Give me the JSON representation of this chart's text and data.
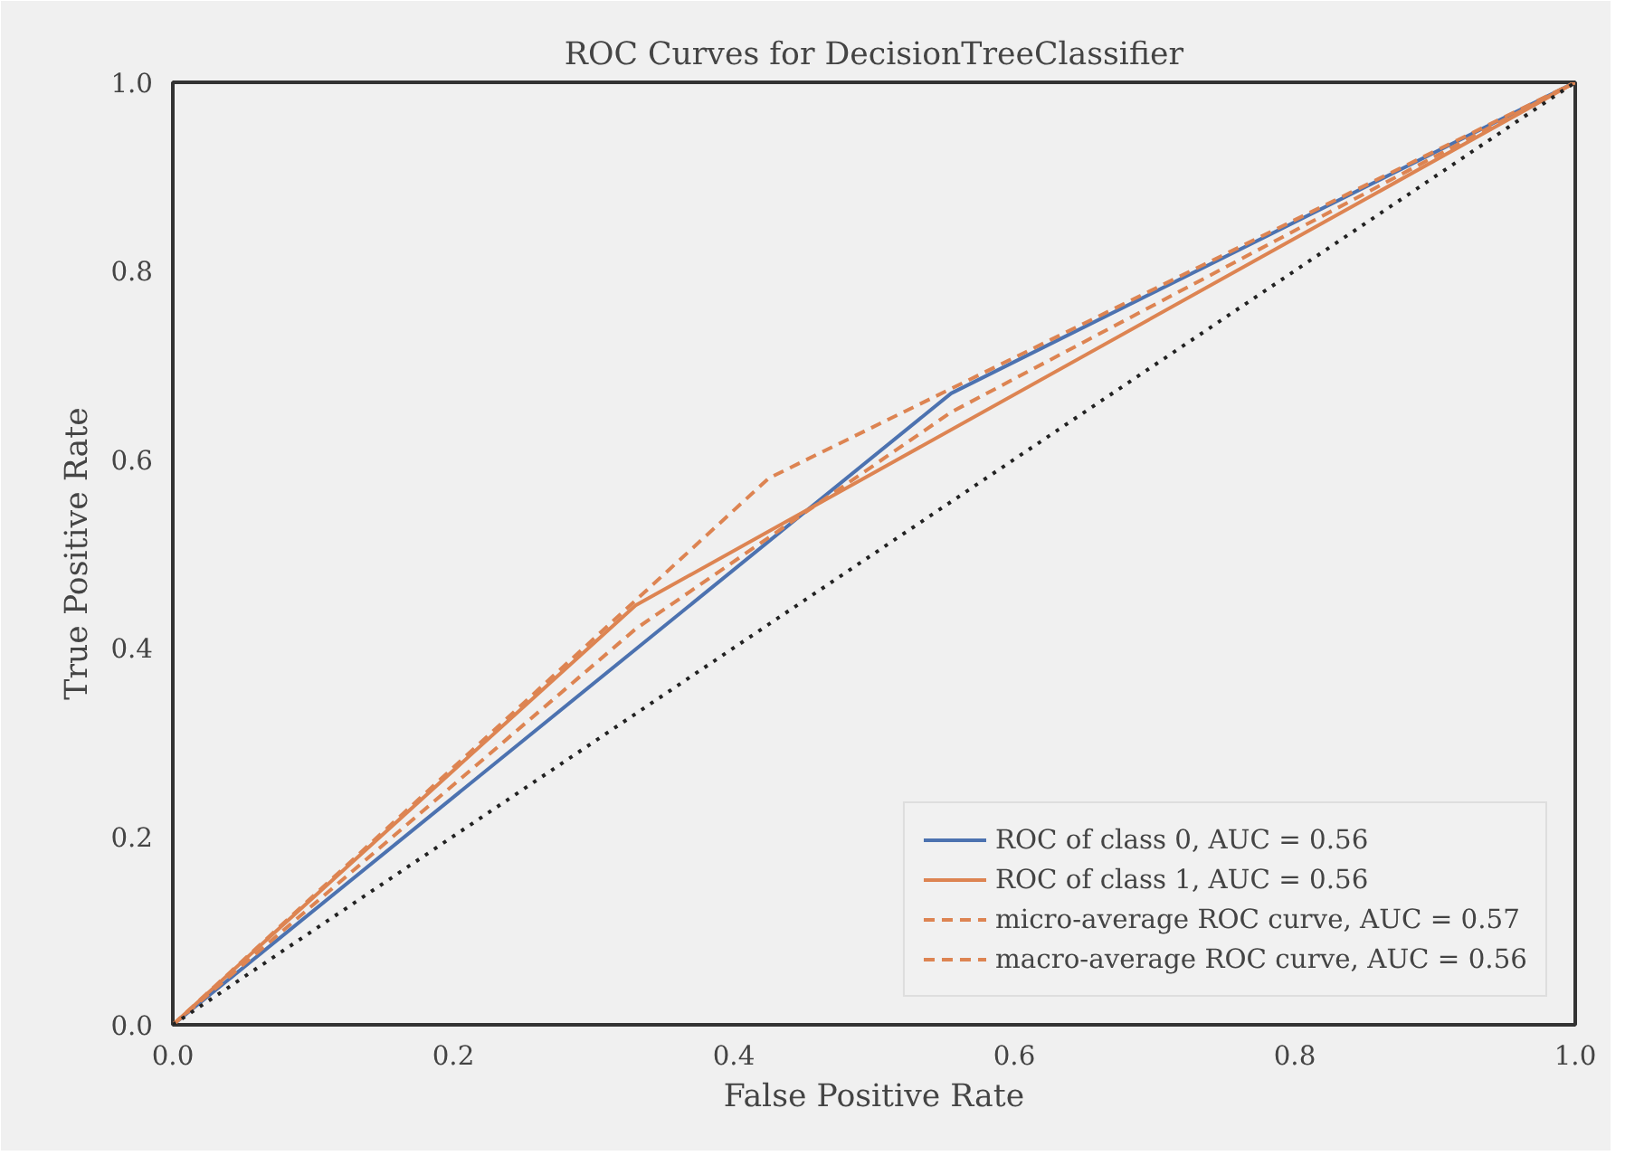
{
  "chart_data": {
    "type": "line",
    "title": "ROC Curves for DecisionTreeClassifier",
    "xlabel": "False Positive Rate",
    "ylabel": "True Positive Rate",
    "xlim": [
      0,
      1
    ],
    "ylim": [
      0,
      1
    ],
    "xticks": [
      {
        "value": 0,
        "label": "0.0"
      },
      0.2,
      0.4,
      0.6,
      0.8,
      {
        "value": 1,
        "label": "1.0"
      }
    ],
    "yticks": [
      {
        "value": 0,
        "label": "0.0"
      },
      0.2,
      0.4,
      0.6,
      0.8,
      {
        "value": 1,
        "label": "1.0"
      }
    ],
    "grid": false,
    "legend": "bottom right",
    "marker": "none",
    "series": [
      {
        "name": "ROC of class 0, AUC = 0.56",
        "color": "#4c72b0",
        "line_style": "solid",
        "x": [
          0,
          0.555,
          1
        ],
        "values": [
          0,
          0.67,
          1
        ]
      },
      {
        "name": "ROC of class 1, AUC = 0.56",
        "color": "#dd8452",
        "line_style": "solid",
        "x": [
          0,
          0.33,
          1
        ],
        "values": [
          0,
          0.445,
          1
        ]
      },
      {
        "name": "micro-average ROC curve, AUC = 0.57",
        "color": "#dd8452",
        "line_style": "dashed",
        "x": [
          0,
          0.425,
          1
        ],
        "values": [
          0,
          0.58,
          1
        ]
      },
      {
        "name": "macro-average ROC curve, AUC = 0.56",
        "color": "#dd8452",
        "line_style": "dashed",
        "x": [
          0,
          0.33,
          0.555,
          1
        ],
        "values": [
          0,
          0.42,
          0.65,
          1
        ]
      },
      {
        "color": "#222222",
        "line_style": "dotted",
        "x": [
          0,
          1
        ],
        "values": [
          0,
          1
        ]
      }
    ]
  }
}
